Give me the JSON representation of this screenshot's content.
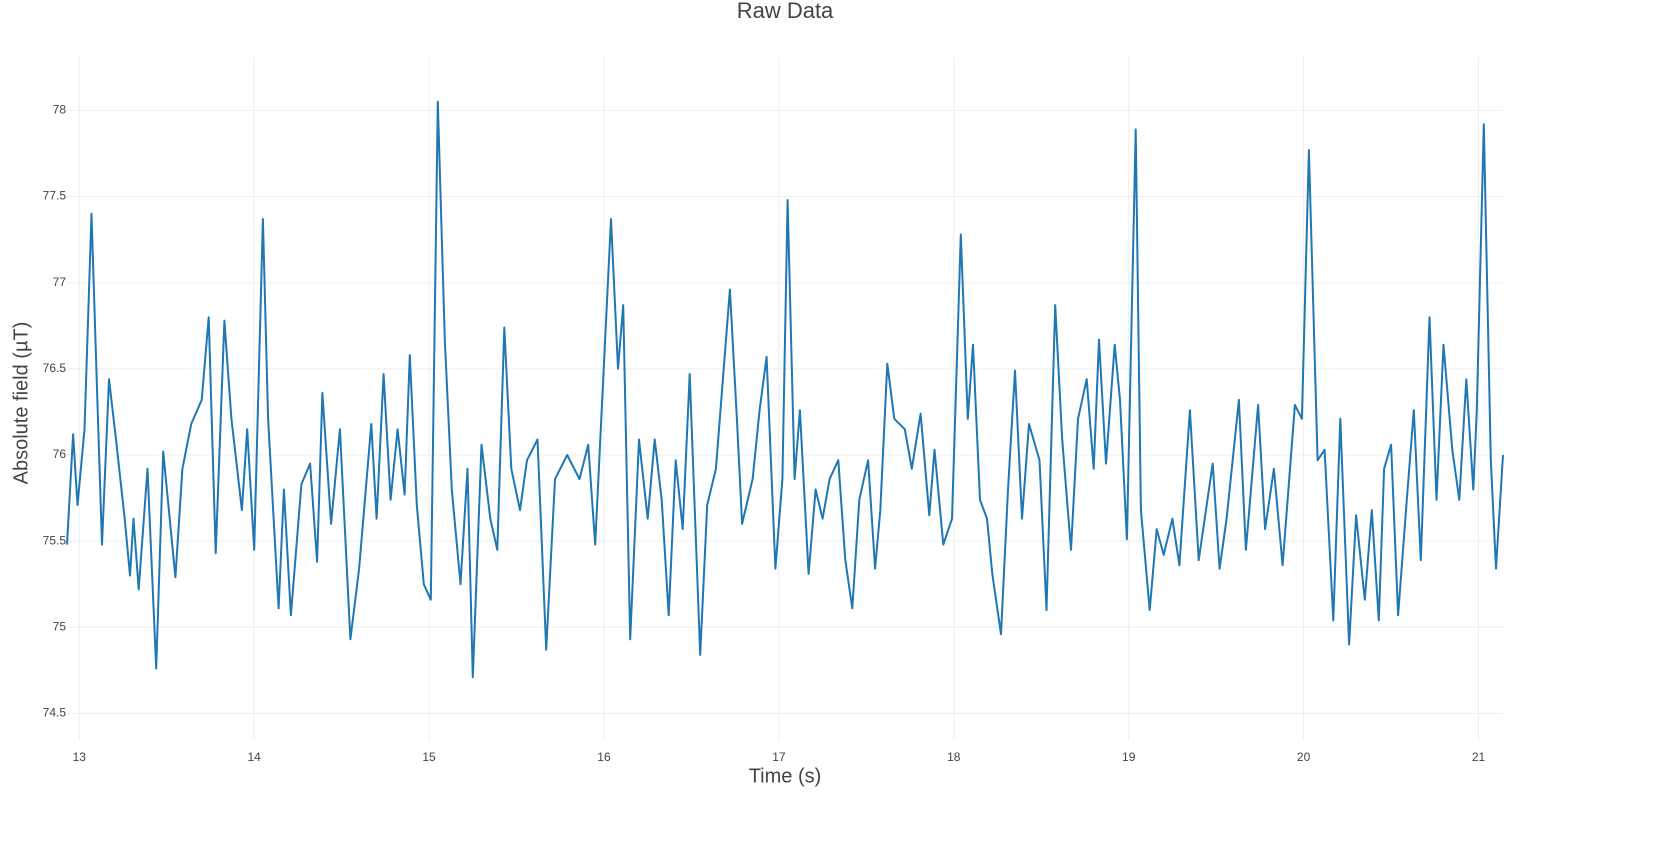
{
  "chart_data": {
    "type": "line",
    "title": "Raw Data",
    "x_label": "Time (s)",
    "y_label": "Absolute field (µT)",
    "color": "#1f77b4",
    "grid": true,
    "xlim": [
      12.93,
      21.14
    ],
    "ylim": [
      74.34,
      78.31
    ],
    "xticks": [
      13,
      14,
      15,
      16,
      17,
      18,
      19,
      20,
      21
    ],
    "yticks": [
      74.5,
      75,
      75.5,
      76,
      76.5,
      77,
      77.5,
      78
    ],
    "x": [
      12.93,
      12.965,
      12.99,
      13.03,
      13.06,
      13.07,
      13.1,
      13.13,
      13.17,
      13.21,
      13.26,
      13.29,
      13.31,
      13.34,
      13.39,
      13.44,
      13.48,
      13.55,
      13.59,
      13.64,
      13.7,
      13.74,
      13.78,
      13.83,
      13.87,
      13.93,
      13.96,
      14.0,
      14.05,
      14.08,
      14.14,
      14.17,
      14.21,
      14.27,
      14.32,
      14.36,
      14.39,
      14.44,
      14.49,
      14.55,
      14.6,
      14.67,
      14.7,
      14.74,
      14.78,
      14.82,
      14.86,
      14.89,
      14.93,
      14.97,
      15.01,
      15.05,
      15.09,
      15.13,
      15.18,
      15.22,
      15.25,
      15.3,
      15.35,
      15.39,
      15.43,
      15.47,
      15.52,
      15.56,
      15.62,
      15.67,
      15.72,
      15.79,
      15.86,
      15.91,
      15.95,
      15.99,
      16.04,
      16.08,
      16.11,
      16.15,
      16.2,
      16.25,
      16.29,
      16.33,
      16.37,
      16.41,
      16.45,
      16.49,
      16.55,
      16.59,
      16.64,
      16.72,
      16.76,
      16.79,
      16.85,
      16.89,
      16.93,
      16.98,
      17.02,
      17.05,
      17.09,
      17.12,
      17.17,
      17.21,
      17.25,
      17.29,
      17.34,
      17.38,
      17.42,
      17.46,
      17.51,
      17.55,
      17.58,
      17.62,
      17.66,
      17.72,
      17.76,
      17.81,
      17.86,
      17.89,
      17.94,
      17.99,
      18.04,
      18.08,
      18.11,
      18.15,
      18.19,
      18.22,
      18.27,
      18.31,
      18.35,
      18.39,
      18.43,
      18.49,
      18.53,
      18.58,
      18.62,
      18.67,
      18.71,
      18.76,
      18.8,
      18.83,
      18.87,
      18.92,
      18.95,
      18.99,
      19.04,
      19.07,
      19.12,
      19.16,
      19.2,
      19.25,
      19.29,
      19.35,
      19.4,
      19.48,
      19.52,
      19.56,
      19.63,
      19.67,
      19.74,
      19.78,
      19.83,
      19.88,
      19.95,
      19.99,
      20.03,
      20.08,
      20.12,
      20.17,
      20.21,
      20.26,
      20.3,
      20.35,
      20.39,
      20.43,
      20.46,
      20.5,
      20.54,
      20.59,
      20.63,
      20.67,
      20.72,
      20.76,
      20.8,
      20.85,
      20.89,
      20.93,
      20.97,
      20.99,
      21.03,
      21.07,
      21.1,
      21.14
    ],
    "values": [
      75.48,
      76.12,
      75.71,
      76.15,
      77.08,
      77.4,
      76.44,
      75.48,
      76.44,
      76.09,
      75.63,
      75.3,
      75.63,
      75.22,
      75.92,
      74.76,
      76.02,
      75.29,
      75.92,
      76.18,
      76.32,
      76.8,
      75.43,
      76.78,
      76.21,
      75.68,
      76.15,
      75.45,
      77.37,
      76.21,
      75.11,
      75.8,
      75.07,
      75.83,
      75.95,
      75.38,
      76.36,
      75.6,
      76.15,
      74.93,
      75.34,
      76.18,
      75.63,
      76.47,
      75.74,
      76.15,
      75.77,
      76.58,
      75.71,
      75.25,
      75.16,
      78.05,
      76.67,
      75.8,
      75.25,
      75.92,
      74.71,
      76.06,
      75.63,
      75.45,
      76.74,
      75.92,
      75.68,
      75.97,
      76.09,
      74.87,
      75.86,
      76.0,
      75.86,
      76.06,
      75.48,
      76.32,
      77.37,
      76.5,
      76.87,
      74.93,
      76.09,
      75.63,
      76.09,
      75.74,
      75.07,
      75.97,
      75.57,
      76.47,
      74.84,
      75.71,
      75.92,
      76.96,
      76.21,
      75.6,
      75.86,
      76.26,
      76.57,
      75.34,
      75.86,
      77.48,
      75.86,
      76.26,
      75.31,
      75.8,
      75.63,
      75.86,
      75.97,
      75.39,
      75.11,
      75.74,
      75.97,
      75.34,
      75.68,
      76.53,
      76.21,
      76.15,
      75.92,
      76.24,
      75.65,
      76.03,
      75.48,
      75.63,
      77.28,
      76.21,
      76.64,
      75.74,
      75.63,
      75.31,
      74.96,
      75.8,
      76.49,
      75.63,
      76.18,
      75.97,
      75.1,
      76.87,
      76.09,
      75.45,
      76.21,
      76.44,
      75.92,
      76.67,
      75.95,
      76.64,
      76.32,
      75.51,
      77.89,
      75.68,
      75.1,
      75.57,
      75.42,
      75.63,
      75.36,
      76.26,
      75.39,
      75.95,
      75.34,
      75.63,
      76.32,
      75.45,
      76.29,
      75.57,
      75.92,
      75.36,
      76.29,
      76.21,
      77.77,
      75.97,
      76.03,
      75.04,
      76.21,
      74.9,
      75.65,
      75.16,
      75.68,
      75.04,
      75.92,
      76.06,
      75.07,
      75.74,
      76.26,
      75.39,
      76.8,
      75.74,
      76.64,
      76.03,
      75.74,
      76.44,
      75.8,
      76.26,
      77.92,
      75.97,
      75.34,
      76.0
    ]
  }
}
